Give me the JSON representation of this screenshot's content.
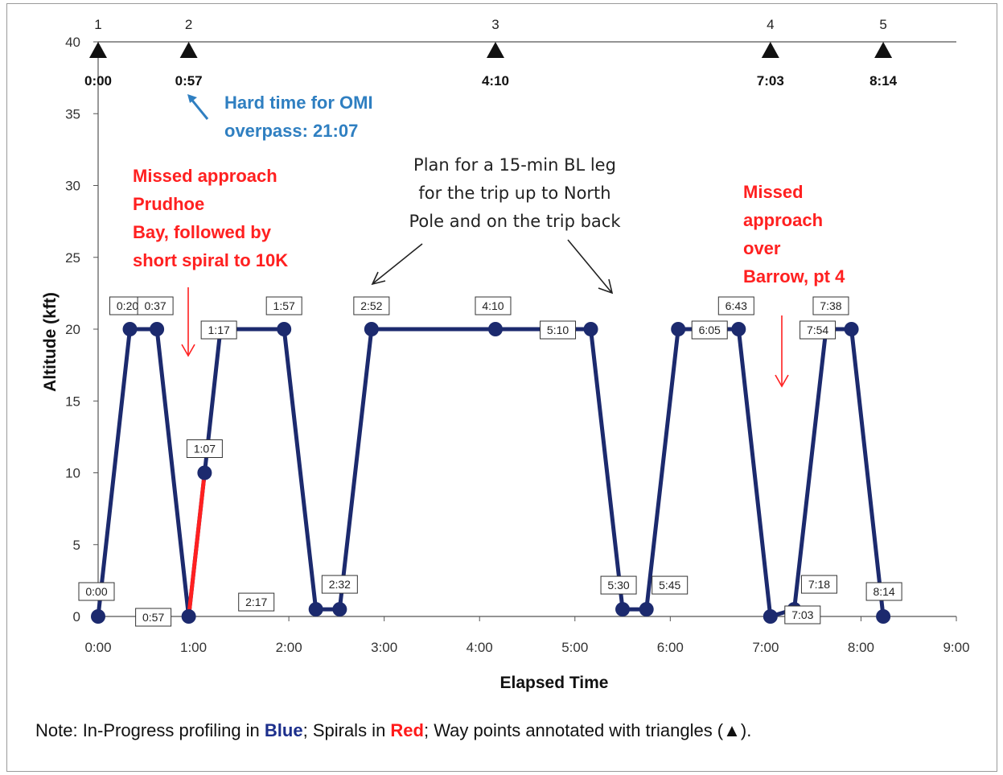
{
  "chart_data": {
    "type": "line",
    "xlabel": "Elapsed Time",
    "ylabel": "Altitude (kft)",
    "xlim": [
      "0:00",
      "9:00"
    ],
    "ylim": [
      0,
      40
    ],
    "x_ticks": [
      "0:00",
      "1:00",
      "2:00",
      "3:00",
      "4:00",
      "5:00",
      "6:00",
      "7:00",
      "8:00",
      "9:00"
    ],
    "y_ticks": [
      0,
      5,
      10,
      15,
      20,
      25,
      30,
      35,
      40
    ],
    "grid": false,
    "series": [
      {
        "color": "#1c2a6e",
        "points": [
          {
            "x": "0:00",
            "y": 0,
            "label": "0:00"
          },
          {
            "x": "0:20",
            "y": 20,
            "label": "0:20"
          },
          {
            "x": "0:37",
            "y": 20,
            "label": "0:37"
          },
          {
            "x": "0:57",
            "y": 0,
            "label": "0:57"
          },
          {
            "x": "1:07",
            "y": 10,
            "label": "1:07"
          },
          {
            "x": "1:17",
            "y": 20,
            "label": "1:17"
          },
          {
            "x": "1:57",
            "y": 20,
            "label": "1:57"
          },
          {
            "x": "2:17",
            "y": 0.5,
            "label": "2:17"
          },
          {
            "x": "2:32",
            "y": 0.5,
            "label": "2:32"
          },
          {
            "x": "2:52",
            "y": 20,
            "label": "2:52"
          },
          {
            "x": "4:10",
            "y": 20,
            "label": "4:10"
          },
          {
            "x": "5:10",
            "y": 20,
            "label": "5:10"
          },
          {
            "x": "5:30",
            "y": 0.5,
            "label": "5:30"
          },
          {
            "x": "5:45",
            "y": 0.5,
            "label": "5:45"
          },
          {
            "x": "6:05",
            "y": 20,
            "label": "6:05"
          },
          {
            "x": "6:43",
            "y": 20,
            "label": "6:43"
          },
          {
            "x": "7:03",
            "y": 0,
            "label": "7:03"
          },
          {
            "x": "7:18",
            "y": 0.5,
            "label": "7:18"
          },
          {
            "x": "7:38",
            "y": 20,
            "label": "7:38"
          },
          {
            "x": "7:54",
            "y": 20,
            "label": "7:54"
          },
          {
            "x": "8:14",
            "y": 0,
            "label": "8:14"
          }
        ]
      },
      {
        "color": "#ff2020",
        "points": [
          {
            "x": "0:57",
            "y": 0
          },
          {
            "x": "1:07",
            "y": 10
          }
        ]
      }
    ],
    "waypoints": [
      {
        "number": "1",
        "time": "0:00"
      },
      {
        "number": "2",
        "time": "0:57"
      },
      {
        "number": "3",
        "time": "4:10"
      },
      {
        "number": "4",
        "time": "7:03"
      },
      {
        "number": "5",
        "time": "8:14"
      }
    ],
    "annotations": {
      "omi": [
        "Hard time for OMI",
        "overpass: 21:07"
      ],
      "prudhoe": [
        "Missed approach",
        "Prudhoe",
        "Bay, followed by",
        "short spiral to 10K"
      ],
      "bl_leg": [
        "Plan for a 15-min BL leg",
        "for the trip up to North",
        "Pole and on the trip back"
      ],
      "barrow": [
        "Missed",
        "approach",
        "over",
        "Barrow, pt 4"
      ]
    },
    "note": {
      "prefix": "Note: In-Progress profiling in ",
      "blue_word": "Blue",
      "middle": "; Spirals in ",
      "red_word": "Red",
      "suffix": ";  Way points annotated with triangles (▲)."
    }
  }
}
